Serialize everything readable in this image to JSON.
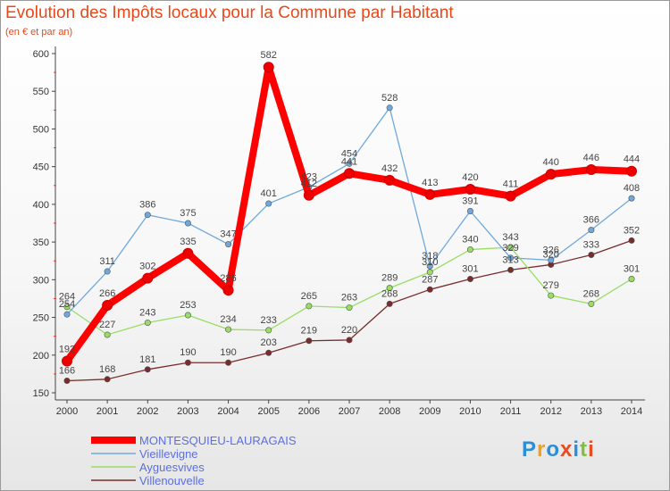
{
  "title": "Evolution des Impôts locaux pour la Commune par Habitant",
  "subtitle": "(en € et par an)",
  "chart_data": {
    "type": "line",
    "x": [
      "2000",
      "2001",
      "2002",
      "2003",
      "2004",
      "2005",
      "2006",
      "2007",
      "2008",
      "2009",
      "2010",
      "2011",
      "2012",
      "2013",
      "2014"
    ],
    "ylim": [
      150,
      600
    ],
    "yticks": [
      "150",
      "200",
      "250",
      "300",
      "350",
      "400",
      "450",
      "500",
      "550",
      "600"
    ],
    "grid": false,
    "legend_position": "bottom-left",
    "series": [
      {
        "name": "MONTESQUIEU-LAURAGAIS",
        "color": "#ff0000",
        "values": [
          192,
          266,
          302,
          335,
          286,
          582,
          412,
          441,
          432,
          413,
          420,
          411,
          440,
          446,
          444
        ],
        "labels": [
          "192",
          "266",
          "302",
          "335",
          "286",
          "582",
          "412",
          "441",
          "432",
          "413",
          "420",
          "411",
          "440",
          "446",
          "444"
        ]
      },
      {
        "name": "Vieillevigne",
        "color": "#6fa8dc",
        "values": [
          254,
          311,
          386,
          375,
          347,
          401,
          423,
          454,
          528,
          318,
          391,
          329,
          326,
          366,
          408
        ],
        "labels": [
          "254",
          "311",
          "386",
          "375",
          "347",
          "401",
          "423",
          "454",
          "528",
          "318",
          "391",
          "329",
          "326",
          "366",
          "408"
        ]
      },
      {
        "name": "Ayguesvives",
        "color": "#99dd66",
        "values": [
          264,
          227,
          243,
          253,
          234,
          233,
          265,
          263,
          289,
          310,
          340,
          343,
          279,
          268,
          301
        ],
        "labels": [
          "264",
          "227",
          "243",
          "253",
          "234",
          "233",
          "265",
          "263",
          "289",
          "310",
          "340",
          "343",
          "279",
          "268",
          "301"
        ]
      },
      {
        "name": "Villenouvelle",
        "color": "#7a2b2b",
        "values": [
          166,
          168,
          181,
          190,
          190,
          203,
          219,
          220,
          268,
          287,
          301,
          313,
          320,
          333,
          352
        ],
        "labels": [
          "166",
          "168",
          "181",
          "190",
          "190",
          "203",
          "219",
          "220",
          "268",
          "287",
          "301",
          "313",
          "320",
          "333",
          "352"
        ]
      }
    ]
  },
  "logo": {
    "letters": [
      "P",
      "r",
      "o",
      "x",
      "i",
      "t",
      "i"
    ],
    "colors": [
      "#2a8fd8",
      "#f0a020",
      "#2a8fd8",
      "#e84c1f",
      "#2a8fd8",
      "#80c040",
      "#e84c1f"
    ]
  }
}
